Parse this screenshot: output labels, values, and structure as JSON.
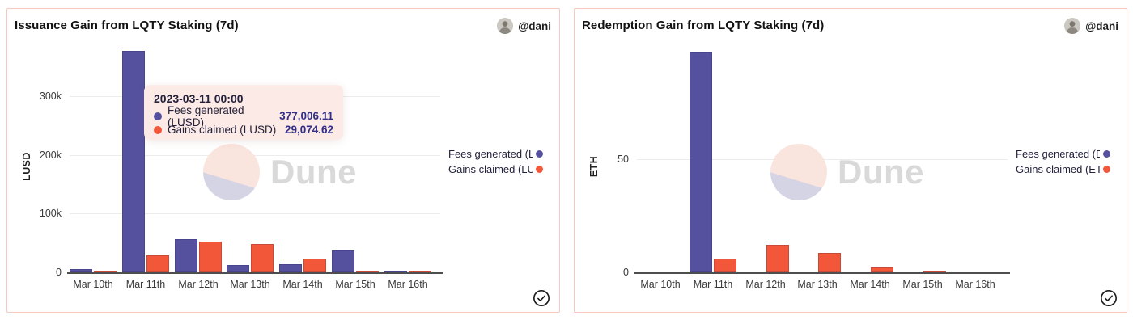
{
  "watermark": {
    "text": "Dune",
    "circle_pink": "#FAE4DE",
    "circle_lavender": "#D5D4E5",
    "text_color": "#D9D9D9"
  },
  "colors": {
    "fees": "#55519F",
    "gains": "#F2573A",
    "panel_border": "#F6C8BE",
    "tooltip_bg": "#FCEAE7",
    "value_text": "#312F87"
  },
  "panels": [
    {
      "title": "Issuance Gain from LQTY Staking (7d)",
      "title_underlined": true,
      "author": "@dani",
      "tooltip": {
        "title": "2023-03-11 00:00",
        "rows": [
          {
            "dot_color": "#55519F",
            "label": "Fees generated (LUSD)",
            "value": "377,006.11"
          },
          {
            "dot_color": "#F2573A",
            "label": "Gains claimed (LUSD)",
            "value": "29,074.62"
          }
        ]
      }
    },
    {
      "title": "Redemption Gain from LQTY Staking (7d)",
      "title_underlined": false,
      "author": "@dani",
      "tooltip": null
    }
  ],
  "chart_data": [
    {
      "type": "bar",
      "title": "Issuance Gain from LQTY Staking (7d)",
      "xlabel": "",
      "ylabel": "LUSD",
      "categories": [
        "Mar 10th",
        "Mar 11th",
        "Mar 12th",
        "Mar 13th",
        "Mar 14th",
        "Mar 15th",
        "Mar 16th"
      ],
      "series": [
        {
          "name": "Fees generated (LUSD)",
          "color": "#55519F",
          "values": [
            6000,
            377006.11,
            56000,
            13000,
            14000,
            37000,
            300
          ]
        },
        {
          "name": "Gains claimed (LUSD)",
          "color": "#F2573A",
          "values": [
            500,
            29074.62,
            52000,
            48500,
            23000,
            2000,
            700
          ]
        }
      ],
      "ylim": [
        0,
        400000
      ],
      "yticks": [
        {
          "value": 0,
          "label": "0"
        },
        {
          "value": 100000,
          "label": "100k"
        },
        {
          "value": 200000,
          "label": "200k"
        },
        {
          "value": 300000,
          "label": "300k"
        }
      ],
      "grid": true,
      "legend_position": "right"
    },
    {
      "type": "bar",
      "title": "Redemption Gain from LQTY Staking (7d)",
      "xlabel": "",
      "ylabel": "ETH",
      "categories": [
        "Mar 10th",
        "Mar 11th",
        "Mar 12th",
        "Mar 13th",
        "Mar 14th",
        "Mar 15th",
        "Mar 16th"
      ],
      "series": [
        {
          "name": "Fees generated (ETH)",
          "color": "#55519F",
          "values": [
            0,
            97,
            0,
            0,
            0,
            0,
            0
          ]
        },
        {
          "name": "Gains claimed (ETH)",
          "color": "#F2573A",
          "values": [
            0,
            6,
            12,
            8.6,
            2.2,
            0.3,
            0
          ]
        }
      ],
      "ylim": [
        0,
        100
      ],
      "yticks": [
        {
          "value": 0,
          "label": "0"
        },
        {
          "value": 50,
          "label": "50"
        }
      ],
      "grid": true,
      "legend_position": "right"
    }
  ]
}
